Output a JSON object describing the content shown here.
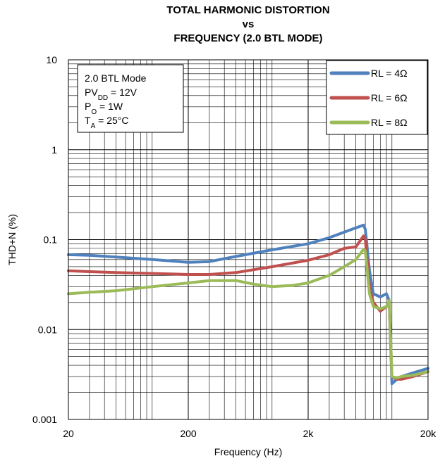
{
  "chart_data": {
    "type": "line",
    "title": [
      "TOTAL HARMONIC DISTORTION",
      "vs",
      "FREQUENCY (2.0 BTL MODE)"
    ],
    "xlabel": "Frequency (Hz)",
    "ylabel": "THD+N (%)",
    "x_scale": "log",
    "y_scale": "log",
    "xlim": [
      20,
      20000
    ],
    "ylim": [
      0.001,
      10
    ],
    "x_ticks": [
      {
        "value": 20,
        "label": "20"
      },
      {
        "value": 200,
        "label": "200"
      },
      {
        "value": 2000,
        "label": "2k"
      },
      {
        "value": 20000,
        "label": "20k"
      }
    ],
    "y_ticks": [
      {
        "value": 0.001,
        "label": "0.001"
      },
      {
        "value": 0.01,
        "label": "0.01"
      },
      {
        "value": 0.1,
        "label": "0.1"
      },
      {
        "value": 1,
        "label": "1"
      },
      {
        "value": 10,
        "label": "10"
      }
    ],
    "grid": true,
    "legend_position": "top-right",
    "annotation": {
      "lines": [
        {
          "main": "2.0 BTL Mode",
          "sub": "",
          "tail": ""
        },
        {
          "main": "PV",
          "sub": "DD",
          "tail": " = 12V"
        },
        {
          "main": "P",
          "sub": "O",
          "tail": " = 1W"
        },
        {
          "main": "T",
          "sub": "A",
          "tail": " = 25°C"
        }
      ]
    },
    "series": [
      {
        "name": "RL = 4Ω",
        "color": "#4f81bd",
        "x": [
          20,
          30,
          50,
          100,
          200,
          300,
          500,
          1000,
          2000,
          3000,
          5000,
          5800,
          6000,
          6500,
          7000,
          8000,
          9000,
          9500,
          10000,
          11000,
          12000,
          15000,
          20000
        ],
        "y": [
          0.068,
          0.067,
          0.064,
          0.06,
          0.056,
          0.057,
          0.065,
          0.077,
          0.09,
          0.105,
          0.135,
          0.145,
          0.13,
          0.045,
          0.025,
          0.023,
          0.025,
          0.021,
          0.0025,
          0.0028,
          0.003,
          0.0033,
          0.0037
        ]
      },
      {
        "name": "RL = 6Ω",
        "color": "#c0504d",
        "x": [
          20,
          30,
          50,
          100,
          200,
          300,
          500,
          1000,
          2000,
          3000,
          4000,
          5000,
          5800,
          6000,
          6500,
          7000,
          8000,
          9000,
          9500,
          10000,
          11000,
          12000,
          15000,
          20000
        ],
        "y": [
          0.045,
          0.044,
          0.043,
          0.042,
          0.041,
          0.041,
          0.043,
          0.05,
          0.059,
          0.068,
          0.08,
          0.083,
          0.11,
          0.1,
          0.03,
          0.02,
          0.016,
          0.018,
          0.02,
          0.003,
          0.0028,
          0.0028,
          0.003,
          0.0034
        ]
      },
      {
        "name": "RL = 8Ω",
        "color": "#9bbb59",
        "x": [
          20,
          30,
          50,
          100,
          200,
          300,
          500,
          700,
          1000,
          1500,
          2000,
          3000,
          4000,
          5000,
          5800,
          6000,
          6500,
          7000,
          8000,
          9000,
          9500,
          10000,
          11000,
          12000,
          15000,
          20000
        ],
        "y": [
          0.025,
          0.026,
          0.027,
          0.03,
          0.033,
          0.035,
          0.035,
          0.032,
          0.03,
          0.031,
          0.033,
          0.04,
          0.05,
          0.06,
          0.078,
          0.075,
          0.025,
          0.018,
          0.017,
          0.018,
          0.021,
          0.003,
          0.0029,
          0.003,
          0.0031,
          0.0034
        ]
      }
    ]
  }
}
